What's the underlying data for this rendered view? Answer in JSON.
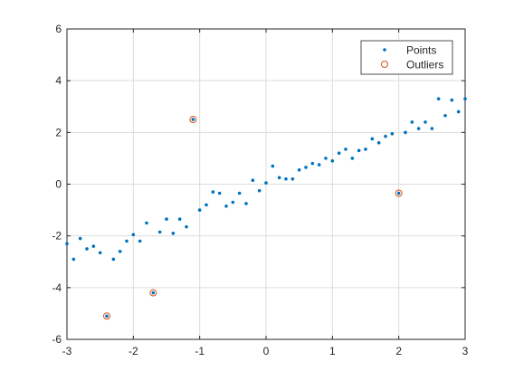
{
  "chart_data": {
    "type": "scatter",
    "xlim": [
      -3,
      3
    ],
    "ylim": [
      -6,
      6
    ],
    "xticks": [
      -3,
      -2,
      -1,
      0,
      1,
      2,
      3
    ],
    "yticks": [
      -6,
      -4,
      -2,
      0,
      2,
      4,
      6
    ],
    "grid": true,
    "legend_position": "top-right",
    "series": [
      {
        "name": "Points",
        "color": "#0072BD",
        "marker": "dot",
        "x": [
          -3.0,
          -2.9,
          -2.8,
          -2.7,
          -2.6,
          -2.5,
          -2.4,
          -2.3,
          -2.2,
          -2.1,
          -2.0,
          -1.9,
          -1.8,
          -1.7,
          -1.6,
          -1.5,
          -1.4,
          -1.3,
          -1.2,
          -1.1,
          -1.0,
          -0.9,
          -0.8,
          -0.7,
          -0.6,
          -0.5,
          -0.4,
          -0.3,
          -0.2,
          -0.1,
          0.0,
          0.1,
          0.2,
          0.3,
          0.4,
          0.5,
          0.6,
          0.7,
          0.8,
          0.9,
          1.0,
          1.1,
          1.2,
          1.3,
          1.4,
          1.5,
          1.6,
          1.7,
          1.8,
          1.9,
          2.0,
          2.1,
          2.2,
          2.3,
          2.4,
          2.5,
          2.6,
          2.7,
          2.8,
          2.9,
          3.0
        ],
        "y": [
          -2.3,
          -2.9,
          -2.1,
          -2.5,
          -2.4,
          -2.65,
          -5.1,
          -2.9,
          -2.6,
          -2.2,
          -1.95,
          -2.2,
          -1.5,
          -4.2,
          -1.85,
          -1.35,
          -1.9,
          -1.35,
          -1.65,
          2.5,
          -1.0,
          -0.8,
          -0.3,
          -0.35,
          -0.85,
          -0.7,
          -0.35,
          -0.75,
          0.15,
          -0.25,
          0.05,
          0.7,
          0.25,
          0.2,
          0.2,
          0.55,
          0.65,
          0.8,
          0.75,
          1.0,
          0.9,
          1.2,
          1.35,
          1.0,
          1.3,
          1.35,
          1.75,
          1.6,
          1.85,
          1.95,
          -0.35,
          2.0,
          2.4,
          2.15,
          2.4,
          2.15,
          3.3,
          2.65,
          3.25,
          2.8,
          3.3
        ]
      },
      {
        "name": "Outliers",
        "color": "#D95319",
        "marker": "circle",
        "x": [
          -2.4,
          -1.7,
          -1.1,
          2.0
        ],
        "y": [
          -5.1,
          -4.2,
          2.5,
          -0.35
        ]
      }
    ]
  }
}
